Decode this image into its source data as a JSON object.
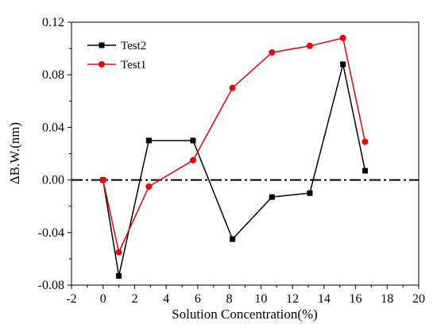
{
  "chart_data": {
    "type": "line",
    "title": "",
    "xlabel": "Solution Concentration(%)",
    "ylabel": "ΔB.W.(nm)",
    "xlim": [
      -2,
      20
    ],
    "ylim": [
      -0.08,
      0.12
    ],
    "xticks": [
      -2,
      0,
      2,
      4,
      6,
      8,
      10,
      12,
      14,
      16,
      18,
      20
    ],
    "yticks": [
      -0.08,
      -0.04,
      0.0,
      0.04,
      0.08,
      0.12
    ],
    "ytick_labels": [
      "-0.08",
      "-0.04",
      "0.00",
      "0.04",
      "0.08",
      "0.12"
    ],
    "grid": false,
    "legend_position": "top-left",
    "reference_line": {
      "y": 0,
      "style": "dash-dot"
    },
    "series": [
      {
        "name": "Test2",
        "color": "#000000",
        "marker": "square",
        "x": [
          0,
          1,
          2.9,
          5.7,
          8.2,
          10.7,
          13.1,
          15.2,
          16.6
        ],
        "y": [
          0.0,
          -0.073,
          0.03,
          0.03,
          -0.045,
          -0.013,
          -0.01,
          0.088,
          0.007
        ]
      },
      {
        "name": "Test1",
        "color": "#e8000b",
        "marker": "circle",
        "x": [
          0,
          1,
          2.9,
          5.7,
          8.2,
          10.7,
          13.1,
          15.2,
          16.6
        ],
        "y": [
          0.0,
          -0.055,
          -0.005,
          0.015,
          0.07,
          0.097,
          0.102,
          0.108,
          0.029
        ]
      }
    ]
  }
}
